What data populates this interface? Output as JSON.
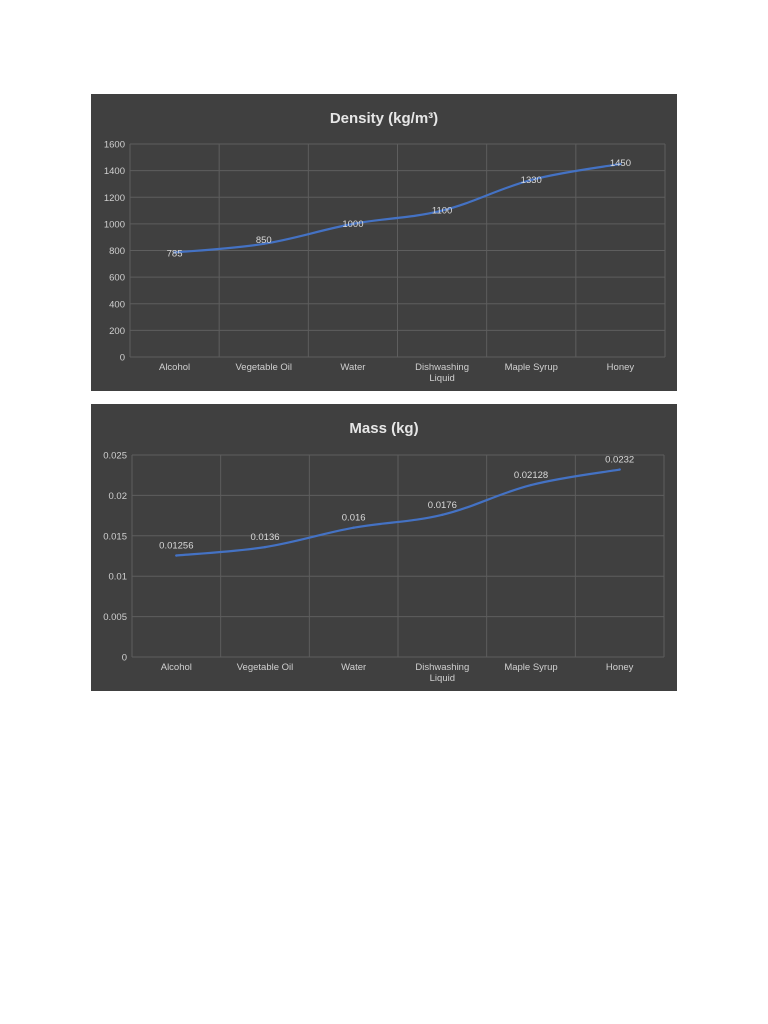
{
  "chart_data": [
    {
      "type": "line",
      "title": "Density (kg/m³)",
      "xlabel": "",
      "ylabel": "",
      "categories": [
        "Alcohol",
        "Vegetable Oil",
        "Water",
        "Dishwashing Liquid",
        "Maple Syrup",
        "Honey"
      ],
      "category_lines": [
        [
          "Alcohol"
        ],
        [
          "Vegetable Oil"
        ],
        [
          "Water"
        ],
        [
          "Dishwashing",
          "Liquid"
        ],
        [
          "Maple Syrup"
        ],
        [
          "Honey"
        ]
      ],
      "values": [
        785,
        850,
        1000,
        1100,
        1330,
        1450
      ],
      "data_labels": [
        "785",
        "850",
        "1000",
        "1100",
        "1330",
        "1450"
      ],
      "ylim": [
        0,
        1600
      ],
      "yticks": [
        "0",
        "200",
        "400",
        "600",
        "800",
        "1000",
        "1200",
        "1400",
        "1600"
      ],
      "ytick_values": [
        0,
        200,
        400,
        600,
        800,
        1000,
        1200,
        1400,
        1600
      ],
      "grid": true,
      "legend": "none",
      "line_color": "#4472c4",
      "background_color": "#404040"
    },
    {
      "type": "line",
      "title": "Mass (kg)",
      "xlabel": "",
      "ylabel": "",
      "categories": [
        "Alcohol",
        "Vegetable Oil",
        "Water",
        "Dishwashing Liquid",
        "Maple Syrup",
        "Honey"
      ],
      "category_lines": [
        [
          "Alcohol"
        ],
        [
          "Vegetable Oil"
        ],
        [
          "Water"
        ],
        [
          "Dishwashing",
          "Liquid"
        ],
        [
          "Maple Syrup"
        ],
        [
          "Honey"
        ]
      ],
      "values": [
        0.01256,
        0.0136,
        0.016,
        0.0176,
        0.02128,
        0.0232
      ],
      "data_labels": [
        "0.01256",
        "0.0136",
        "0.016",
        "0.0176",
        "0.02128",
        "0.0232"
      ],
      "ylim": [
        0,
        0.025
      ],
      "yticks": [
        "0",
        "0.005",
        "0.01",
        "0.015",
        "0.02",
        "0.025"
      ],
      "ytick_values": [
        0,
        0.005,
        0.01,
        0.015,
        0.02,
        0.025
      ],
      "grid": true,
      "legend": "none",
      "line_color": "#4472c4",
      "background_color": "#404040"
    }
  ]
}
